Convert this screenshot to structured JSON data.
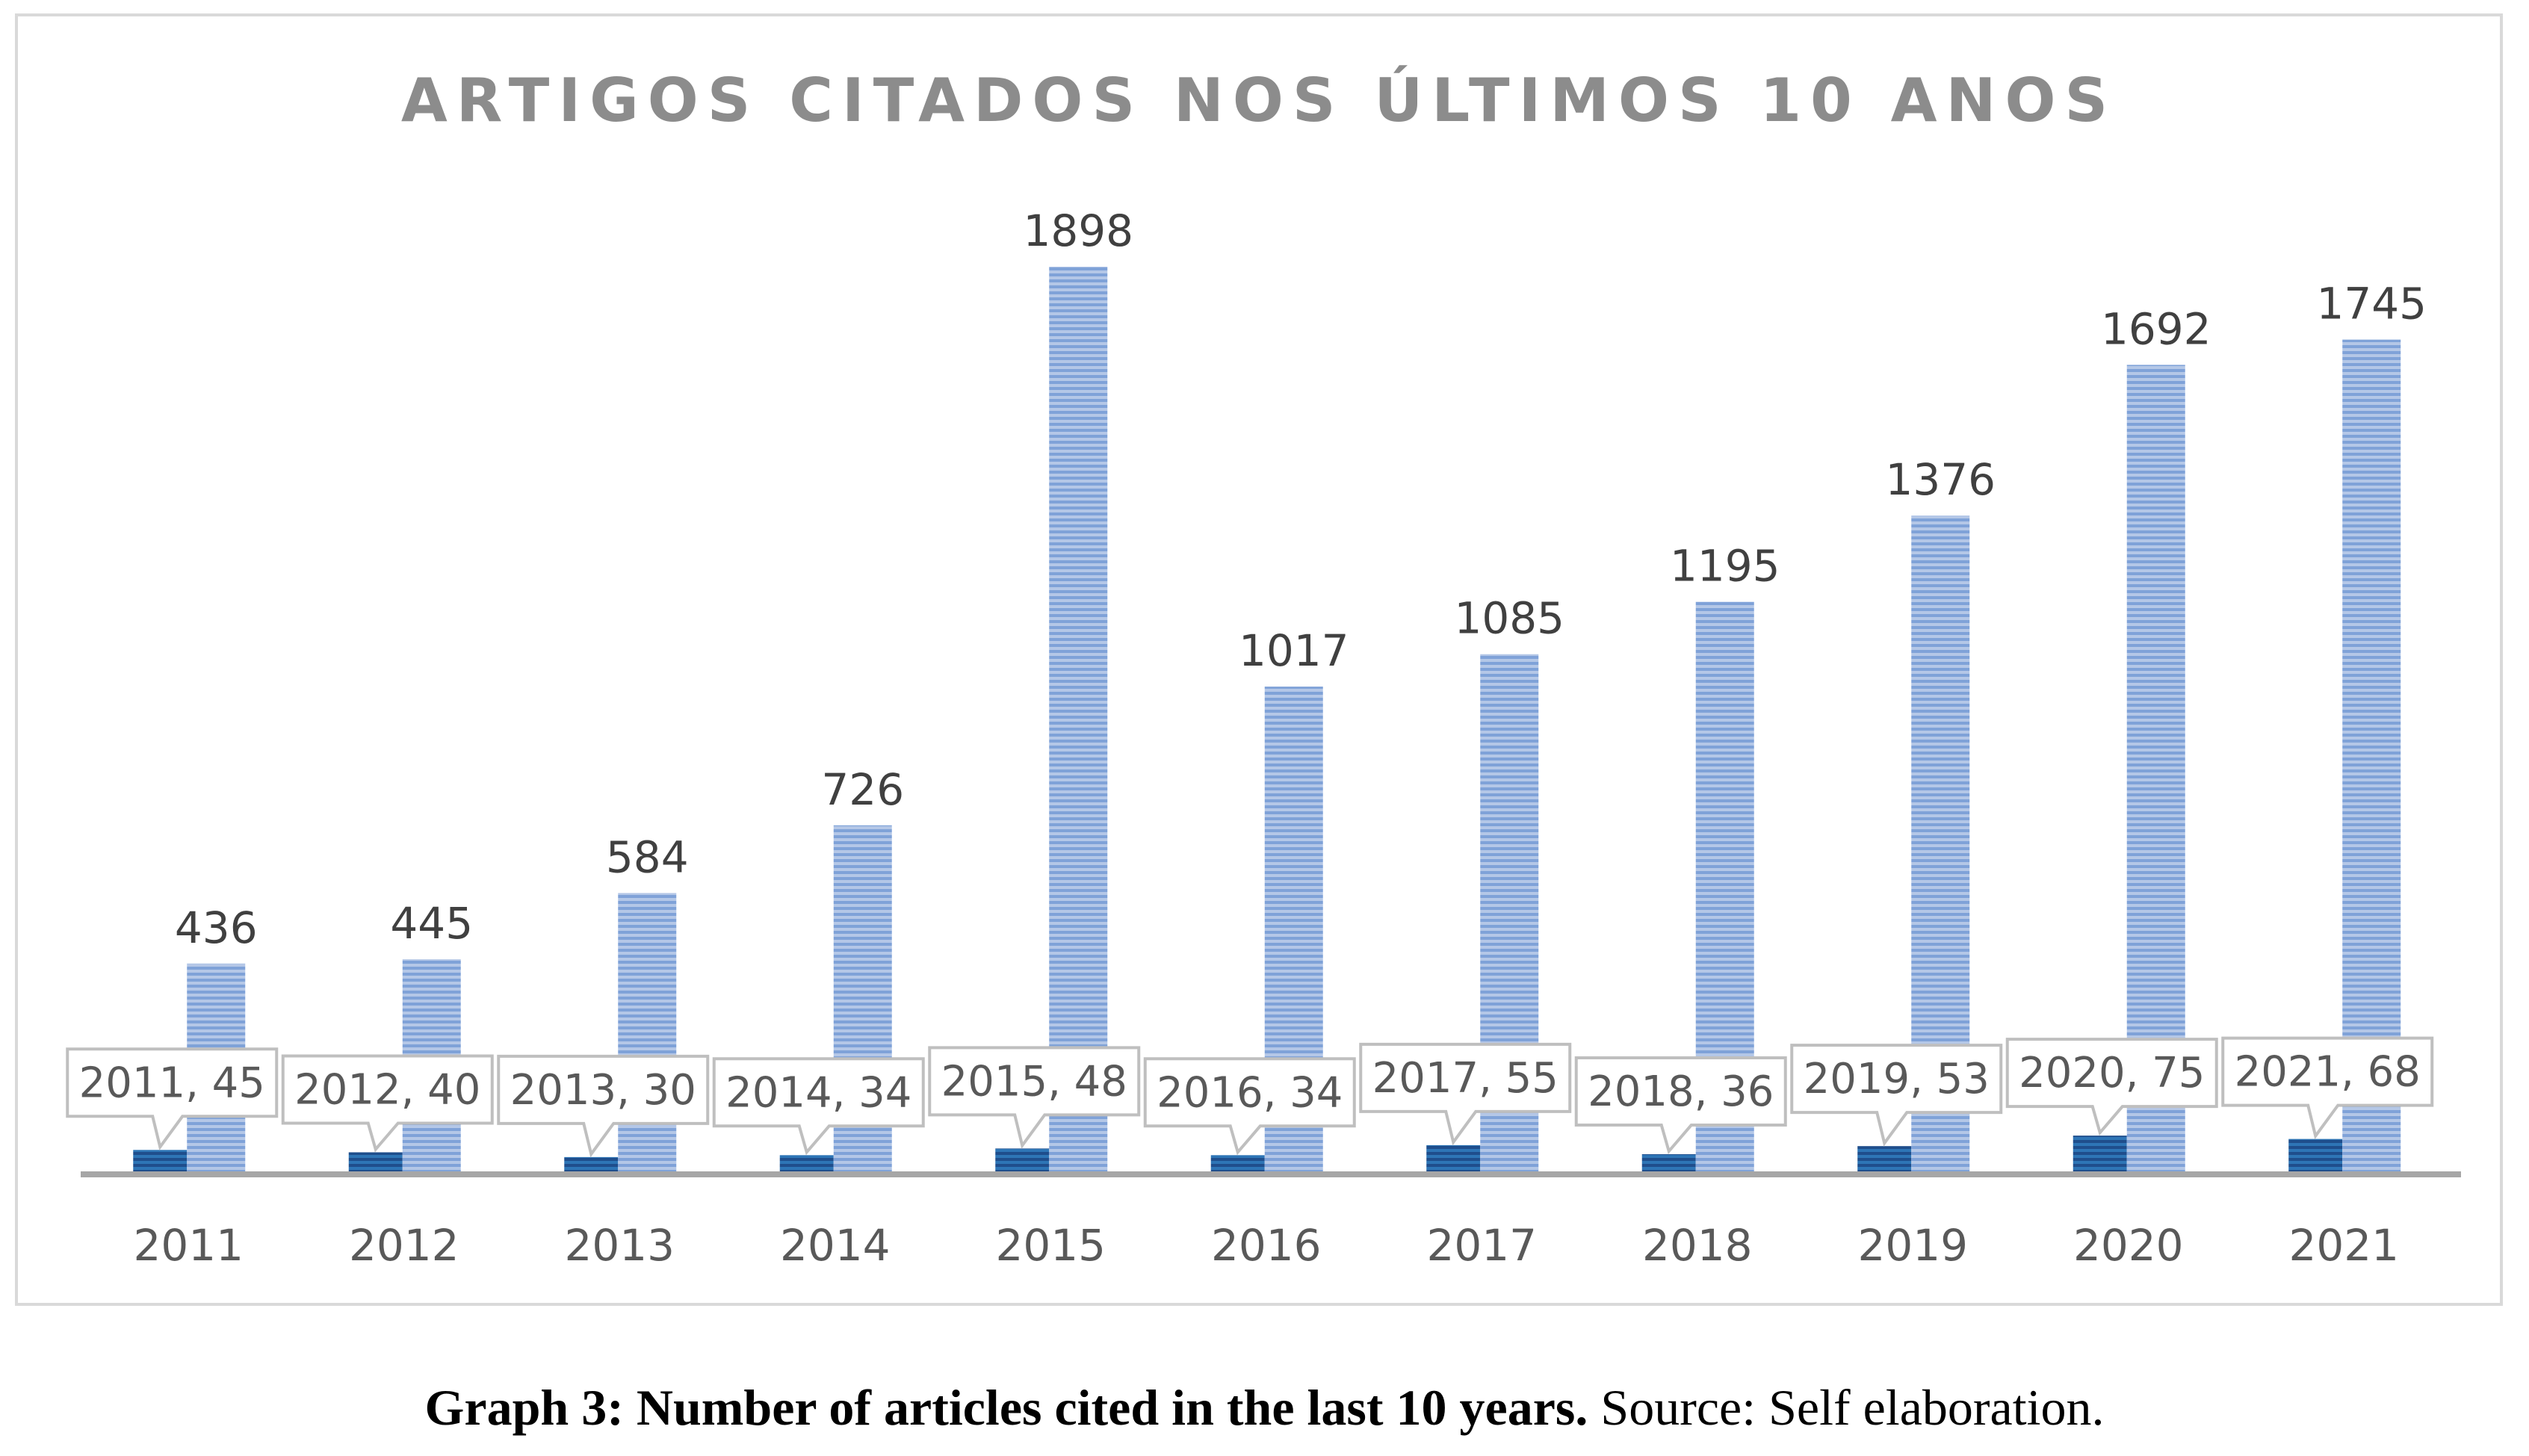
{
  "chart_data": {
    "type": "bar",
    "title": "ARTIGOS CITADOS NOS ÚLTIMOS 10 ANOS",
    "categories": [
      "2011",
      "2012",
      "2013",
      "2014",
      "2015",
      "2016",
      "2017",
      "2018",
      "2019",
      "2020",
      "2021"
    ],
    "series": [
      {
        "values": [
          45,
          40,
          30,
          34,
          48,
          34,
          55,
          36,
          53,
          75,
          68
        ],
        "labels": [
          "2011, 45",
          "2012, 40",
          "2013, 30",
          "2014, 34",
          "2015, 48",
          "2016, 34",
          "2017, 55",
          "2018, 36",
          "2019, 53",
          "2020, 75",
          "2021, 68"
        ],
        "color": "#2e75b6"
      },
      {
        "values": [
          436,
          445,
          584,
          726,
          1898,
          1017,
          1085,
          1195,
          1376,
          1692,
          1745
        ],
        "labels": [
          "436",
          "445",
          "584",
          "726",
          "1898",
          "1017",
          "1085",
          "1195",
          "1376",
          "1692",
          "1745"
        ],
        "color": "#8faadc"
      }
    ],
    "ylim": [
      0,
      1898
    ],
    "grid": false,
    "legend": "none",
    "xlabel": "",
    "ylabel": ""
  },
  "caption": {
    "bold": "Graph 3: Number of articles cited in the last 10 years.",
    "normal": " Source: Self elaboration."
  }
}
